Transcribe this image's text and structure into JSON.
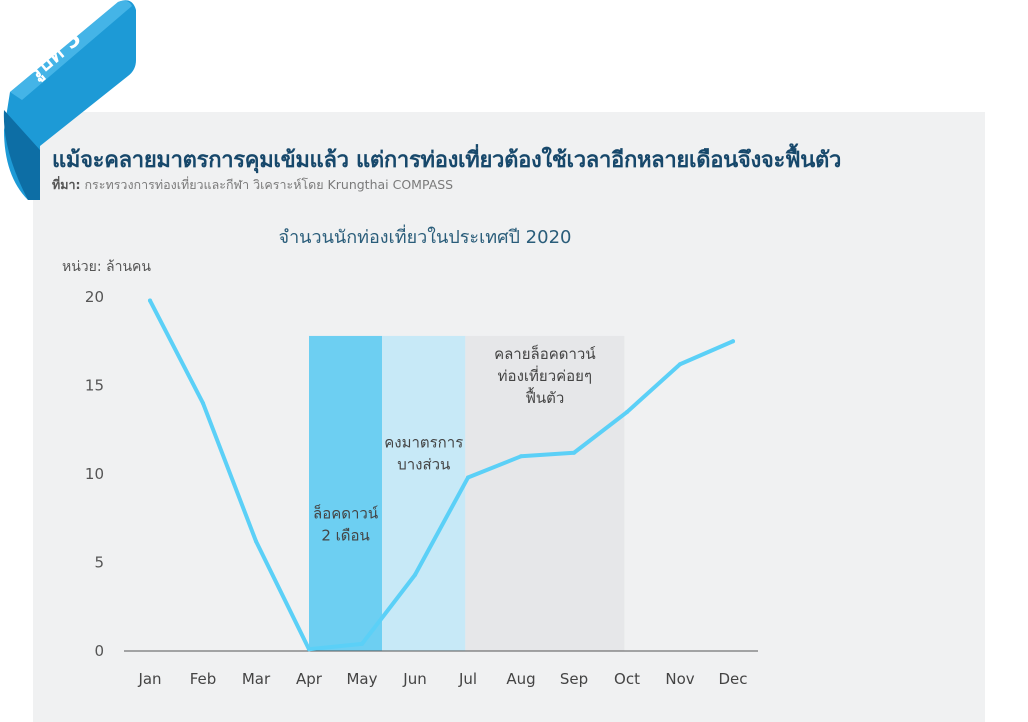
{
  "badge": {
    "label": "รูปที่ 5"
  },
  "headline": "แม้จะคลายมาตรการคุมเข้มแล้ว แต่การท่องเที่ยวต้องใช้เวลาอีกหลายเดือนจึงจะฟื้นตัว",
  "source": {
    "prefix": "ที่มา:",
    "text": " กระทรวงการท่องเที่ยวและกีฬา วิเคราะห์โดย Krungthai COMPASS"
  },
  "colors": {
    "line": "#5bd0f7",
    "lockdown": "#6dcff2",
    "partial": "#c7e9f7",
    "easing": "#e6e7e9",
    "panel": "#f0f1f2",
    "ribbon": "#1d9ad6"
  },
  "chart_data": {
    "type": "line",
    "title": "จำนวนนักท่องเที่ยวในประเทศปี 2020",
    "ylabel": "หน่วย: ล้านคน",
    "categories": [
      "Jan",
      "Feb",
      "Mar",
      "Apr",
      "May",
      "Jun",
      "Jul",
      "Aug",
      "Sep",
      "Oct",
      "Nov",
      "Dec"
    ],
    "values": [
      19.8,
      14.0,
      6.2,
      0.1,
      0.4,
      4.3,
      9.8,
      11.0,
      11.2,
      13.5,
      16.2,
      17.5
    ],
    "ylim": [
      0,
      20
    ],
    "yticks": [
      0,
      5,
      10,
      15,
      20
    ],
    "shaded_periods": [
      {
        "start": 3,
        "end": 4.38,
        "fill": "lockdown",
        "label": [
          "ล็อคดาวน์",
          "2 เดือน"
        ],
        "label_value": 7.5
      },
      {
        "start": 4.38,
        "end": 5.95,
        "fill": "partial",
        "label": [
          "คงมาตรการ",
          "บางส่วน"
        ],
        "label_value": 11.5
      },
      {
        "start": 5.95,
        "end": 8.95,
        "fill": "easing",
        "label": [
          "คลายล็อคดาวน์",
          "ท่องเที่ยวค่อยๆ",
          "ฟื้นตัว"
        ],
        "label_value": 16.5
      }
    ],
    "shade_top_value": 17.8,
    "grid": false
  }
}
